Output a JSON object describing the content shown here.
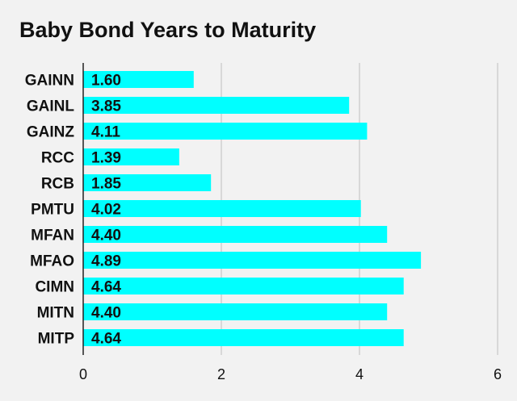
{
  "chart_data": {
    "type": "bar",
    "orientation": "horizontal",
    "title": "Baby Bond Years to Maturity",
    "categories": [
      "GAINN",
      "GAINL",
      "GAINZ",
      "RCC",
      "RCB",
      "PMTU",
      "MFAN",
      "MFAO",
      "CIMN",
      "MITN",
      "MITP"
    ],
    "values": [
      1.6,
      3.85,
      4.11,
      1.39,
      1.85,
      4.02,
      4.4,
      4.89,
      4.64,
      4.4,
      4.64
    ],
    "value_labels": [
      "1.60",
      "3.85",
      "4.11",
      "1.39",
      "1.85",
      "4.02",
      "4.40",
      "4.89",
      "4.64",
      "4.40",
      "4.64"
    ],
    "x_ticks": [
      0,
      2,
      4,
      6
    ],
    "xlim": [
      0,
      6
    ],
    "grid": true,
    "colors": {
      "bar": "#00ffff",
      "background": "#f2f2f2",
      "grid": "#bdbdbd",
      "axis": "#222222",
      "text": "#111111"
    }
  }
}
